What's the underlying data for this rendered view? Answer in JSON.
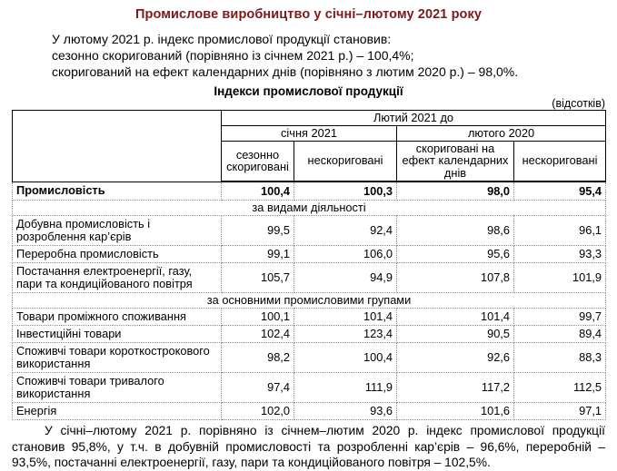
{
  "title": "Промислове виробництво у січні–лютому 2021 року",
  "intro": {
    "line1": "У лютому 2021 р. індекс промислової продукції становив:",
    "line2": "сезонно скоригований (порівняно із січнем 2021 р.) – 100,4%;",
    "line3": "скоригований на ефект календарних днів (порівняно з лютим 2020 р.) – 98,0%."
  },
  "table": {
    "title": "Індекси промислової продукції",
    "unit_note": "(відсотків)",
    "header": {
      "period": "Лютий 2021 до",
      "group_left": "січня 2021",
      "group_right": "лютого 2020",
      "col1": "сезонно скориговані",
      "col2": "нескориговані",
      "col3": "скориговані на ефект календарних днів",
      "col4": "нескориговані"
    },
    "total_row": {
      "label": "Промисловість",
      "v": [
        "100,4",
        "100,3",
        "98,0",
        "95,4"
      ]
    },
    "section1": "за видами діяльності",
    "s1rows": [
      {
        "label": "Добувна промисловість і розроблення кар’єрів",
        "v": [
          "99,5",
          "92,4",
          "98,6",
          "96,1"
        ]
      },
      {
        "label": "Переробна промисловість",
        "v": [
          "99,1",
          "106,0",
          "95,6",
          "93,3"
        ]
      },
      {
        "label": "Постачання електроенергії, газу, пари та кондиційованого повітря",
        "v": [
          "105,7",
          "94,9",
          "107,8",
          "101,9"
        ]
      }
    ],
    "section2": "за основними промисловими групами",
    "s2rows": [
      {
        "label": "Товари проміжного споживання",
        "v": [
          "100,1",
          "101,4",
          "101,4",
          "99,7"
        ]
      },
      {
        "label": "Інвестиційні товари",
        "v": [
          "102,4",
          "123,4",
          "90,5",
          "89,4"
        ]
      },
      {
        "label": "Споживчі товари короткострокового використання",
        "v": [
          "98,2",
          "100,4",
          "92,6",
          "88,3"
        ]
      },
      {
        "label": "Споживчі товари тривалого використання",
        "v": [
          "97,4",
          "111,9",
          "117,2",
          "112,5"
        ]
      },
      {
        "label": "Енергія",
        "v": [
          "102,0",
          "93,6",
          "101,6",
          "97,1"
        ]
      }
    ]
  },
  "footer": "У січні–лютому 2021 р. порівняно із січнем–лютим 2020 р. індекс промислової продукції становив 95,8%, у т.ч. в добувній промисловості та розробленні кар’єрів – 96,6%, переробній – 93,5%, постачанні електроенергії, газу, пари та кондиційованого повітря – 102,5%.",
  "colors": {
    "title_accent": "#7a1a1a",
    "header_border": "#000000",
    "body_border": "#8f8f8f"
  }
}
